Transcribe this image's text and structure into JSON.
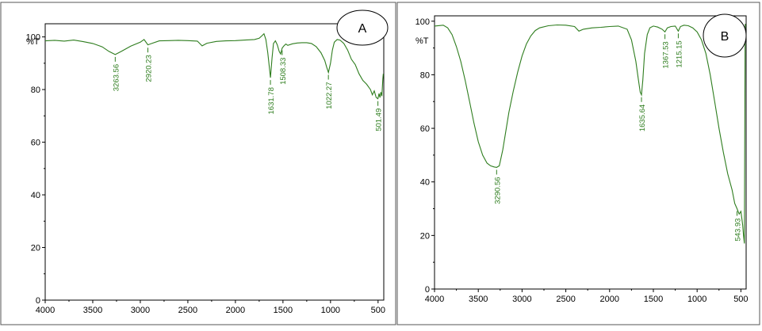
{
  "chart_data": [
    {
      "type": "line",
      "panel_label": "A",
      "ylabel": "%T",
      "xlim": [
        4000,
        440
      ],
      "ylim": [
        0,
        105
      ],
      "x_ticks": [
        4000,
        3500,
        3000,
        2500,
        2000,
        1500,
        1000,
        500
      ],
      "y_ticks": [
        0,
        20,
        40,
        60,
        80,
        100
      ],
      "grid": false,
      "color": "#2e7d1e",
      "series": [
        {
          "x": [
            4000,
            3900,
            3800,
            3700,
            3600,
            3500,
            3400,
            3330,
            3263.56,
            3200,
            3100,
            3000,
            2960,
            2920.23,
            2880,
            2800,
            2700,
            2600,
            2500,
            2400,
            2350,
            2300,
            2200,
            2100,
            2000,
            1900,
            1800,
            1750,
            1720,
            1700,
            1680,
            1660,
            1645,
            1631.78,
            1615,
            1600,
            1580,
            1560,
            1540,
            1525,
            1508.33,
            1490,
            1470,
            1450,
            1400,
            1350,
            1300,
            1250,
            1200,
            1150,
            1100,
            1060,
            1040,
            1022.27,
            1000,
            980,
            960,
            930,
            900,
            860,
            820,
            780,
            740,
            700,
            660,
            620,
            580,
            560,
            540,
            520,
            501.49,
            490,
            480,
            470,
            460,
            450,
            445
          ],
          "y": [
            98.5,
            98.7,
            98.4,
            98.8,
            98.2,
            97.5,
            96.2,
            94.5,
            93.3,
            94.5,
            96.5,
            98.0,
            99.0,
            97.0,
            97.5,
            98.5,
            98.6,
            98.7,
            98.6,
            98.4,
            96.6,
            97.6,
            98.3,
            98.5,
            98.6,
            98.8,
            99.0,
            99.5,
            100.5,
            101.2,
            99.0,
            94.0,
            89.0,
            84.5,
            92.0,
            97.5,
            98.5,
            97.0,
            94.5,
            93.5,
            95.8,
            96.6,
            97.3,
            96.8,
            97.4,
            97.7,
            97.8,
            97.8,
            97.5,
            96.3,
            94.0,
            91.0,
            88.5,
            86.5,
            90.0,
            95.0,
            98.0,
            99.0,
            98.8,
            97.5,
            95.0,
            91.5,
            89.5,
            86.0,
            83.5,
            82.0,
            80.0,
            78.0,
            79.5,
            77.0,
            76.5,
            78.5,
            77.0,
            79.0,
            77.5,
            84.0,
            86.0
          ]
        }
      ],
      "annotations": [
        "3263.56",
        "2920.23",
        "1631.78",
        "1508.33",
        "1022.27",
        "501.49"
      ],
      "annotation_x": [
        3263.56,
        2920.23,
        1631.78,
        1508.33,
        1022.27,
        501.49
      ],
      "annotation_y": [
        93.3,
        96.8,
        84.5,
        95.8,
        86.5,
        76.5
      ]
    },
    {
      "type": "line",
      "panel_label": "B",
      "ylabel": "%T",
      "xlim": [
        4000,
        440
      ],
      "ylim": [
        0,
        102
      ],
      "x_ticks": [
        4000,
        3500,
        3000,
        2500,
        2000,
        1500,
        1000,
        500
      ],
      "y_ticks": [
        0,
        20,
        40,
        60,
        80,
        100
      ],
      "grid": false,
      "color": "#2e7d1e",
      "series": [
        {
          "x": [
            4000,
            3900,
            3850,
            3800,
            3750,
            3700,
            3650,
            3600,
            3550,
            3500,
            3450,
            3400,
            3360,
            3320,
            3290.56,
            3260,
            3220,
            3180,
            3150,
            3100,
            3050,
            3000,
            2950,
            2900,
            2850,
            2800,
            2700,
            2600,
            2500,
            2400,
            2350,
            2300,
            2200,
            2100,
            2000,
            1900,
            1800,
            1750,
            1700,
            1670,
            1650,
            1635.64,
            1620,
            1600,
            1570,
            1540,
            1500,
            1450,
            1400,
            1367.53,
            1340,
            1300,
            1250,
            1215.15,
            1190,
            1150,
            1100,
            1050,
            1000,
            950,
            900,
            850,
            800,
            750,
            700,
            650,
            600,
            570,
            543.93,
            520,
            500,
            480,
            470,
            460,
            455,
            452,
            450
          ],
          "y": [
            98.2,
            98.5,
            97.5,
            95.0,
            90.5,
            85.0,
            78.0,
            70.0,
            62.0,
            55.0,
            50.0,
            47.0,
            46.0,
            45.6,
            45.4,
            46.0,
            52.0,
            60.0,
            66.0,
            74.0,
            81.0,
            87.0,
            91.5,
            94.5,
            96.5,
            97.5,
            98.3,
            98.6,
            98.5,
            98.0,
            96.3,
            97.0,
            97.5,
            97.7,
            98.0,
            98.2,
            97.0,
            93.0,
            85.0,
            78.0,
            73.5,
            72.5,
            78.0,
            88.0,
            95.0,
            97.5,
            98.2,
            97.8,
            97.0,
            96.0,
            97.5,
            98.0,
            98.2,
            96.3,
            98.0,
            98.5,
            98.3,
            97.5,
            96.0,
            93.0,
            88.0,
            80.0,
            70.0,
            60.0,
            51.0,
            43.0,
            37.0,
            32.0,
            30.0,
            28.0,
            29.0,
            24.0,
            20.0,
            17.0,
            60.0,
            95.0,
            99.0
          ]
        }
      ],
      "annotations": [
        "3290.56",
        "1635.64",
        "1367.53",
        "1215.15",
        "543.93"
      ],
      "annotation_x": [
        3290.56,
        1635.64,
        1367.53,
        1215.15,
        543.93
      ],
      "annotation_y": [
        45.4,
        72.5,
        96.0,
        96.3,
        30.0
      ]
    }
  ]
}
